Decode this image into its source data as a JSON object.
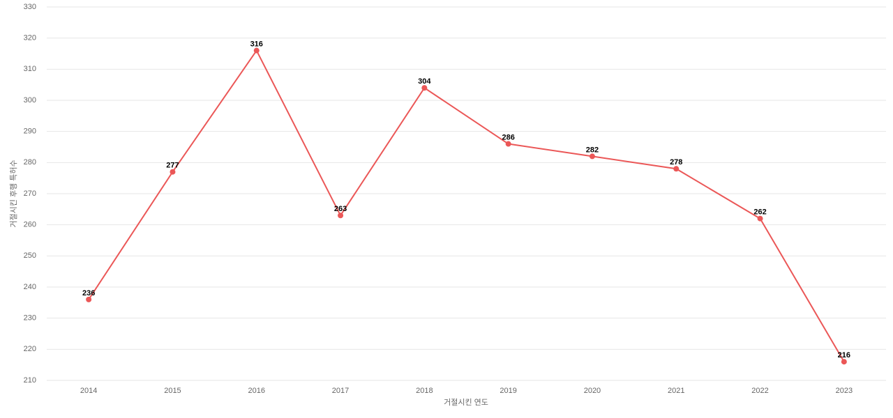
{
  "chart_data": {
    "type": "line",
    "x_label": "거절시킨 연도",
    "y_label": "거절시킨 후행 특허수",
    "categories": [
      "2014",
      "2015",
      "2016",
      "2017",
      "2018",
      "2019",
      "2020",
      "2021",
      "2022",
      "2023"
    ],
    "series": [
      {
        "name": "거절시킨 후행 특허수",
        "color": "#eb5757",
        "values": [
          236,
          277,
          316,
          263,
          304,
          286,
          282,
          278,
          262,
          216
        ]
      }
    ],
    "ylim": [
      210,
      330
    ],
    "yticks": [
      210,
      220,
      230,
      240,
      250,
      260,
      270,
      280,
      290,
      300,
      310,
      320,
      330
    ],
    "grid": true,
    "data_labels": true
  }
}
